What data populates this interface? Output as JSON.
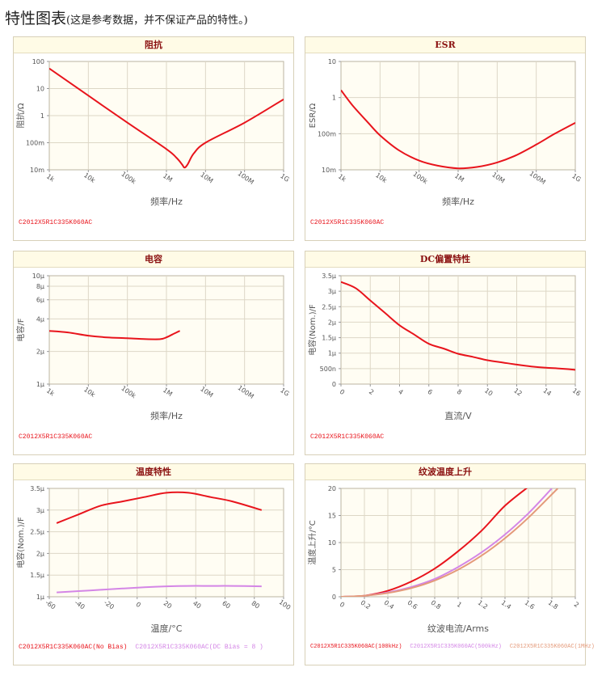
{
  "page": {
    "title": "特性图表",
    "subtitle": "(这是参考数据，并不保证产品的特性。)"
  },
  "colors": {
    "red": "#e8141c",
    "violet": "#d486e6",
    "salmon": "#e49a7a",
    "plot_bg": "#fffdf3",
    "grid": "#ddd7c6",
    "axis_text": "#555555",
    "title_text": "#8a1010",
    "header_bg": "#fffbe6"
  },
  "charts": [
    {
      "title": "阻抗",
      "legend": [
        {
          "label": "C2012X5R1C335K060AC",
          "color": "#e8141c"
        }
      ]
    },
    {
      "title": "ESR",
      "legend": [
        {
          "label": "C2012X5R1C335K060AC",
          "color": "#e8141c"
        }
      ]
    },
    {
      "title": "电容",
      "legend": [
        {
          "label": "C2012X5R1C335K060AC",
          "color": "#e8141c"
        }
      ]
    },
    {
      "title": "DC偏置特性",
      "legend": [
        {
          "label": "C2012X5R1C335K060AC",
          "color": "#e8141c"
        }
      ]
    },
    {
      "title": "温度特性",
      "legend": [
        {
          "label": "C2012X5R1C335K060AC(No Bias)",
          "color": "#e8141c"
        },
        {
          "label": "C2012X5R1C335K060AC(DC Bias = 8 )",
          "color": "#d486e6"
        }
      ]
    },
    {
      "title": "纹波温度上升",
      "legend": [
        {
          "label": "C2012X5R1C335K060AC(100kHz)",
          "color": "#e8141c"
        },
        {
          "label": "C2012X5R1C335K060AC(500kHz)",
          "color": "#d486e6"
        },
        {
          "label": "C2012X5R1C335K060AC(1MHz)",
          "color": "#e49a7a"
        }
      ]
    }
  ],
  "chart_data": [
    {
      "type": "line",
      "title": "阻抗",
      "xlabel": "频率/Hz",
      "ylabel": "阻抗/Ω",
      "xscale": "log",
      "yscale": "log",
      "xlim": [
        1000,
        1000000000
      ],
      "ylim": [
        0.01,
        100
      ],
      "xticks": [
        1000,
        10000,
        100000,
        1000000,
        10000000,
        100000000,
        1000000000
      ],
      "xtick_labels": [
        "1k",
        "10k",
        "100k",
        "1M",
        "10M",
        "100M",
        "1G"
      ],
      "yticks": [
        0.01,
        0.1,
        1,
        10,
        100
      ],
      "ytick_labels": [
        "10m",
        "100m",
        "1",
        "10",
        "100"
      ],
      "grid": true,
      "series": [
        {
          "name": "C2012X5R1C335K060AC",
          "color": "#e8141c",
          "x": [
            1000,
            10000,
            100000,
            1000000,
            1800000,
            2500000,
            2900000,
            3500000,
            5000000,
            10000000,
            100000000,
            1000000000
          ],
          "y": [
            55,
            5.5,
            0.55,
            0.058,
            0.028,
            0.016,
            0.012,
            0.016,
            0.04,
            0.1,
            0.55,
            4
          ]
        }
      ]
    },
    {
      "type": "line",
      "title": "ESR",
      "xlabel": "频率/Hz",
      "ylabel": "ESR/Ω",
      "xscale": "log",
      "yscale": "log",
      "xlim": [
        1000,
        1000000000
      ],
      "ylim": [
        0.01,
        10
      ],
      "xticks": [
        1000,
        10000,
        100000,
        1000000,
        10000000,
        100000000,
        1000000000
      ],
      "xtick_labels": [
        "1k",
        "10k",
        "100k",
        "1M",
        "10M",
        "100M",
        "1G"
      ],
      "yticks": [
        0.01,
        0.1,
        1,
        10
      ],
      "ytick_labels": [
        "10m",
        "100m",
        "1",
        "10"
      ],
      "grid": true,
      "series": [
        {
          "name": "C2012X5R1C335K060AC",
          "color": "#e8141c",
          "x": [
            1000,
            2000,
            5000,
            10000,
            30000,
            100000,
            300000,
            1000000,
            3000000,
            10000000,
            30000000,
            100000000,
            300000000,
            1000000000
          ],
          "y": [
            1.6,
            0.6,
            0.2,
            0.09,
            0.035,
            0.018,
            0.013,
            0.011,
            0.012,
            0.016,
            0.025,
            0.05,
            0.1,
            0.2
          ]
        }
      ]
    },
    {
      "type": "line",
      "title": "电容",
      "xlabel": "频率/Hz",
      "ylabel": "电容/F",
      "xscale": "log",
      "yscale": "log",
      "xlim": [
        1000,
        1000000000
      ],
      "ylim": [
        1e-06,
        1e-05
      ],
      "xticks": [
        1000,
        10000,
        100000,
        1000000,
        10000000,
        100000000,
        1000000000
      ],
      "xtick_labels": [
        "1k",
        "10k",
        "100k",
        "1M",
        "10M",
        "100M",
        "1G"
      ],
      "yticks": [
        1e-06,
        2e-06,
        4e-06,
        6e-06,
        8e-06,
        1e-05
      ],
      "ytick_labels": [
        "1μ",
        "2μ",
        "4μ",
        "6μ",
        "8μ",
        "10μ"
      ],
      "grid": true,
      "series": [
        {
          "name": "C2012X5R1C335K060AC",
          "color": "#e8141c",
          "x": [
            1000,
            3000,
            10000,
            30000,
            100000,
            300000,
            700000,
            1000000,
            1500000,
            2200000
          ],
          "y": [
            3.1e-06,
            3e-06,
            2.8e-06,
            2.7e-06,
            2.65e-06,
            2.6e-06,
            2.6e-06,
            2.7e-06,
            2.9e-06,
            3.1e-06
          ]
        }
      ]
    },
    {
      "type": "line",
      "title": "DC偏置特性",
      "xlabel": "直流/V",
      "ylabel": "电容(Nom.)/F",
      "xlim": [
        0,
        16
      ],
      "ylim": [
        0,
        3.5e-06
      ],
      "xticks": [
        0,
        2,
        4,
        6,
        8,
        10,
        12,
        14,
        16
      ],
      "xtick_labels": [
        "0",
        "2",
        "4",
        "6",
        "8",
        "10",
        "12",
        "14",
        "16"
      ],
      "yticks": [
        0,
        5e-07,
        1e-06,
        1.5e-06,
        2e-06,
        2.5e-06,
        3e-06,
        3.5e-06
      ],
      "ytick_labels": [
        "0",
        "500n",
        "1μ",
        "1.5μ",
        "2μ",
        "2.5μ",
        "3μ",
        "3.5μ"
      ],
      "grid": true,
      "series": [
        {
          "name": "C2012X5R1C335K060AC",
          "color": "#e8141c",
          "x": [
            0,
            1,
            2,
            3,
            4,
            5,
            6,
            7,
            8,
            9,
            10,
            11,
            12,
            13,
            14,
            15,
            16
          ],
          "y": [
            3.3e-06,
            3.1e-06,
            2.7e-06,
            2.3e-06,
            1.9e-06,
            1.6e-06,
            1.3e-06,
            1.15e-06,
            9.8e-07,
            8.8e-07,
            7.7e-07,
            7e-07,
            6.3e-07,
            5.7e-07,
            5.3e-07,
            5e-07,
            4.6e-07
          ]
        }
      ]
    },
    {
      "type": "line",
      "title": "温度特性",
      "xlabel": "温度/°C",
      "ylabel": "电容(Nom.)/F",
      "xlim": [
        -60,
        100
      ],
      "ylim": [
        1e-06,
        3.5e-06
      ],
      "xticks": [
        -60,
        -40,
        -20,
        0,
        20,
        40,
        60,
        80,
        100
      ],
      "xtick_labels": [
        "-60",
        "-40",
        "-20",
        "0",
        "20",
        "40",
        "60",
        "80",
        "100"
      ],
      "yticks": [
        1e-06,
        1.5e-06,
        2e-06,
        2.5e-06,
        3e-06,
        3.5e-06
      ],
      "ytick_labels": [
        "1μ",
        "1.5μ",
        "2μ",
        "2.5μ",
        "3μ",
        "3.5μ"
      ],
      "grid": true,
      "series": [
        {
          "name": "C2012X5R1C335K060AC(No Bias)",
          "color": "#e8141c",
          "x": [
            -55,
            -40,
            -25,
            -10,
            5,
            20,
            35,
            50,
            65,
            85
          ],
          "y": [
            2.7e-06,
            2.9e-06,
            3.1e-06,
            3.2e-06,
            3.3e-06,
            3.4e-06,
            3.4e-06,
            3.3e-06,
            3.2e-06,
            3e-06
          ]
        },
        {
          "name": "C2012X5R1C335K060AC(DC Bias = 8 )",
          "color": "#d486e6",
          "x": [
            -55,
            -40,
            -25,
            -10,
            5,
            20,
            35,
            50,
            65,
            85
          ],
          "y": [
            1.1e-06,
            1.13e-06,
            1.16e-06,
            1.19e-06,
            1.22e-06,
            1.24e-06,
            1.25e-06,
            1.25e-06,
            1.25e-06,
            1.24e-06
          ]
        }
      ]
    },
    {
      "type": "line",
      "title": "纹波温度上升",
      "xlabel": "纹波电流/Arms",
      "ylabel": "温度上升/°C",
      "xlim": [
        0,
        2
      ],
      "ylim": [
        0,
        20
      ],
      "xticks": [
        0,
        0.2,
        0.4,
        0.6,
        0.8,
        1,
        1.2,
        1.4,
        1.6,
        1.8,
        2
      ],
      "xtick_labels": [
        "0",
        "0.2",
        "0.4",
        "0.6",
        "0.8",
        "1",
        "1.2",
        "1.4",
        "1.6",
        "1.8",
        "2"
      ],
      "yticks": [
        0,
        5,
        10,
        15,
        20
      ],
      "ytick_labels": [
        "0",
        "5",
        "10",
        "15",
        "20"
      ],
      "grid": true,
      "series": [
        {
          "name": "C2012X5R1C335K060AC(100kHz)",
          "color": "#e8141c",
          "x": [
            0,
            0.2,
            0.4,
            0.6,
            0.8,
            1.0,
            1.2,
            1.4,
            1.6
          ],
          "y": [
            0,
            0.2,
            1.1,
            2.8,
            5.2,
            8.4,
            12.2,
            16.8,
            20.3
          ]
        },
        {
          "name": "C2012X5R1C335K060AC(500kHz)",
          "color": "#d486e6",
          "x": [
            0,
            0.2,
            0.4,
            0.6,
            0.8,
            1.0,
            1.2,
            1.4,
            1.6,
            1.8
          ],
          "y": [
            0,
            0.2,
            0.8,
            1.8,
            3.3,
            5.5,
            8.2,
            11.5,
            15.4,
            20.0
          ]
        },
        {
          "name": "C2012X5R1C335K060AC(1MHz)",
          "color": "#e49a7a",
          "x": [
            0,
            0.2,
            0.4,
            0.6,
            0.8,
            1.0,
            1.2,
            1.4,
            1.6,
            1.85
          ],
          "y": [
            0,
            0.2,
            0.7,
            1.6,
            3.0,
            5.0,
            7.6,
            10.8,
            14.6,
            20.0
          ]
        }
      ]
    }
  ]
}
